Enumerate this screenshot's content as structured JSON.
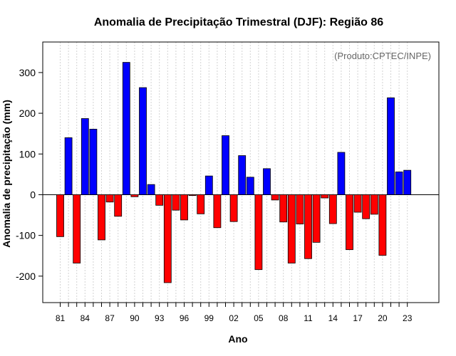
{
  "chart_data": {
    "type": "bar",
    "title": "Anomalia de Precipitação Trimestral (DJF): Região 86",
    "xlabel": "Ano",
    "ylabel": "Anomalia de precipitação (mm)",
    "credit": "(Produto:CPTEC/INPE)",
    "ylim": [
      -265,
      375
    ],
    "yticks": [
      -200,
      -100,
      0,
      100,
      200,
      300
    ],
    "grid": true,
    "positive_color": "#0000ff",
    "negative_color": "#ff0000",
    "years": [
      1981,
      1982,
      1983,
      1984,
      1985,
      1986,
      1987,
      1988,
      1989,
      1990,
      1991,
      1992,
      1993,
      1994,
      1995,
      1996,
      1997,
      1998,
      1999,
      2000,
      2001,
      2002,
      2003,
      2004,
      2005,
      2006,
      2007,
      2008,
      2009,
      2010,
      2011,
      2012,
      2013,
      2014,
      2015,
      2016,
      2017,
      2018,
      2019,
      2020,
      2021,
      2022,
      2023
    ],
    "values": [
      -103,
      140,
      -168,
      187,
      161,
      -111,
      -18,
      -53,
      325,
      -5,
      263,
      25,
      -26,
      -216,
      -38,
      -62,
      -2,
      -47,
      46,
      -81,
      145,
      -66,
      96,
      43,
      -184,
      64,
      -13,
      -67,
      -168,
      -72,
      -157,
      -117,
      -8,
      -71,
      104,
      -135,
      -43,
      -59,
      -48,
      -149,
      238,
      56,
      60
    ],
    "xtick_labels": [
      "81",
      "84",
      "87",
      "90",
      "93",
      "96",
      "99",
      "02",
      "05",
      "08",
      "11",
      "14",
      "17",
      "20",
      "23"
    ]
  }
}
